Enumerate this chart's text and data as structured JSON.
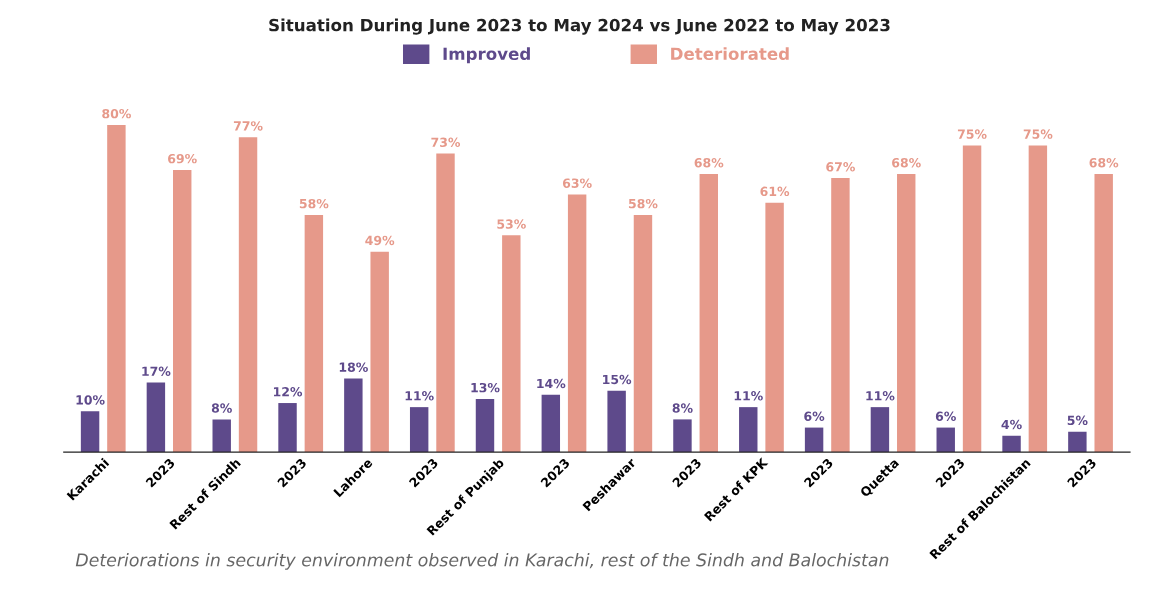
{
  "chart_data": {
    "type": "bar",
    "title": "Situation During June 2023 to May 2024 vs June 2022 to May 2023",
    "categories": [
      "Karachi",
      "2023",
      "Rest of Sindh",
      "2023",
      "Lahore",
      "2023",
      "Rest of Punjab",
      "2023",
      "Peshawar",
      "2023",
      "Rest of KPK",
      "2023",
      "Quetta",
      "2023",
      "Rest of Balochistan",
      "2023"
    ],
    "series": [
      {
        "name": "Improved",
        "color": "#5e4a8b",
        "values": [
          10,
          17,
          8,
          12,
          18,
          11,
          13,
          14,
          15,
          8,
          11,
          6,
          11,
          6,
          4,
          5
        ],
        "value_labels": [
          "10%",
          "17%",
          "8%",
          "12%",
          "18%",
          "11%",
          "13%",
          "14%",
          "15%",
          "8%",
          "11%",
          "6%",
          "11%",
          "6%",
          "4%",
          "5%"
        ]
      },
      {
        "name": "Deteriorated",
        "color": "#e6998a",
        "values": [
          80,
          69,
          77,
          58,
          49,
          73,
          53,
          63,
          58,
          68,
          61,
          67,
          68,
          75,
          75,
          68
        ],
        "value_labels": [
          "80%",
          "69%",
          "77%",
          "58%",
          "49%",
          "73%",
          "53%",
          "63%",
          "58%",
          "68%",
          "61%",
          "67%",
          "68%",
          "75%",
          "75%",
          "68%"
        ]
      }
    ],
    "legend": "top",
    "grid": false,
    "annotations": [
      "Deteriorations in security environment observed in Karachi, rest of the Sindh and Balochistan"
    ]
  }
}
